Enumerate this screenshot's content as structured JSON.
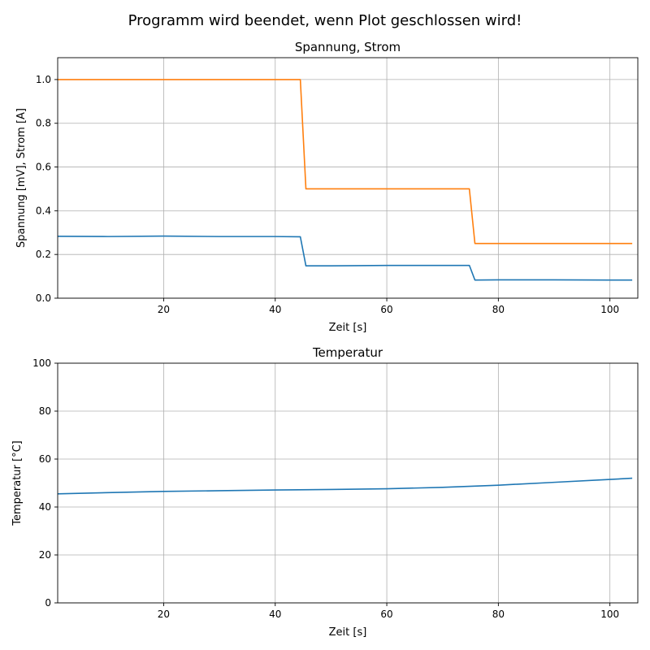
{
  "suptitle": "Programm wird beendet, wenn Plot geschlossen wird!",
  "chart_data": [
    {
      "type": "line",
      "title": "Spannung, Strom",
      "xlabel": "Zeit [s]",
      "ylabel": "Spannung [mV], Strom [A]",
      "xlim": [
        1,
        105
      ],
      "ylim": [
        0,
        1.1
      ],
      "xticks": [
        20,
        40,
        60,
        80,
        100
      ],
      "yticks": [
        0.0,
        0.2,
        0.4,
        0.6,
        0.8,
        1.0
      ],
      "ytick_labels": [
        "0.0",
        "0.2",
        "0.4",
        "0.6",
        "0.8",
        "1.0"
      ],
      "grid": true,
      "series": [
        {
          "color": "#1f77b4",
          "x": [
            1,
            10,
            20,
            30,
            40,
            44.5,
            45.5,
            50,
            60,
            70,
            74.8,
            75.8,
            80,
            90,
            100,
            104
          ],
          "y": [
            0.283,
            0.282,
            0.284,
            0.282,
            0.282,
            0.281,
            0.148,
            0.148,
            0.15,
            0.15,
            0.15,
            0.083,
            0.084,
            0.084,
            0.083,
            0.083
          ]
        },
        {
          "color": "#ff7f0e",
          "x": [
            1,
            44.5,
            45.5,
            74.8,
            75.8,
            104
          ],
          "y": [
            1.0,
            1.0,
            0.5,
            0.5,
            0.25,
            0.25
          ]
        }
      ]
    },
    {
      "type": "line",
      "title": "Temperatur",
      "xlabel": "Zeit [s]",
      "ylabel": "Temperatur [°C]",
      "xlim": [
        1,
        105
      ],
      "ylim": [
        0,
        100
      ],
      "xticks": [
        20,
        40,
        60,
        80,
        100
      ],
      "yticks": [
        0,
        20,
        40,
        60,
        80,
        100
      ],
      "ytick_labels": [
        "0",
        "20",
        "40",
        "60",
        "80",
        "100"
      ],
      "grid": true,
      "series": [
        {
          "color": "#1f77b4",
          "x": [
            1,
            10,
            20,
            30,
            40,
            50,
            60,
            70,
            80,
            90,
            100,
            104
          ],
          "y": [
            45.5,
            46.0,
            46.5,
            46.8,
            47.1,
            47.3,
            47.6,
            48.2,
            49.1,
            50.3,
            51.5,
            52.0
          ]
        }
      ]
    }
  ]
}
